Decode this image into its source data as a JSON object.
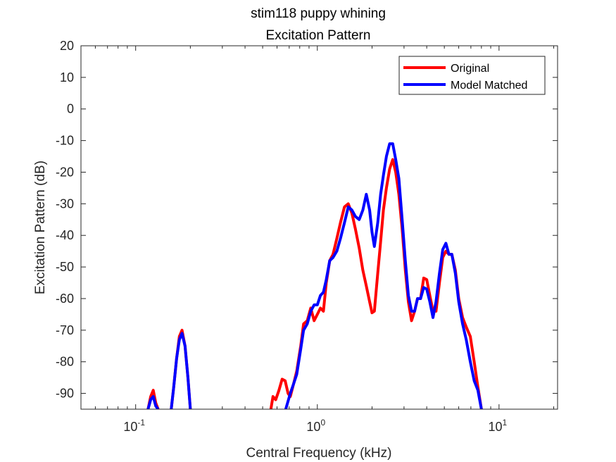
{
  "chart_data": {
    "type": "line",
    "title": "stim118 puppy whining",
    "subtitle": "Excitation Pattern",
    "xlabel": "Central Frequency (kHz)",
    "ylabel": "Excitation Pattern (dB)",
    "xscale": "log",
    "xlim": [
      0.05,
      21
    ],
    "ylim": [
      -95,
      20
    ],
    "yticks": [
      20,
      10,
      0,
      -10,
      -20,
      -30,
      -40,
      -50,
      -60,
      -70,
      -80,
      -90
    ],
    "xticks": [
      {
        "value": 0.1,
        "base": "10",
        "exp": "-1"
      },
      {
        "value": 1,
        "base": "10",
        "exp": "0"
      },
      {
        "value": 10,
        "base": "10",
        "exp": "1"
      }
    ],
    "grid": false,
    "legend_position": "top-right",
    "series": [
      {
        "name": "Original",
        "color": "#ff0000",
        "segments": [
          [
            [
              0.117,
              -95
            ],
            [
              0.121,
              -91
            ],
            [
              0.125,
              -89
            ],
            [
              0.129,
              -93
            ],
            [
              0.133,
              -95
            ]
          ],
          [
            [
              0.157,
              -95
            ],
            [
              0.162,
              -88
            ],
            [
              0.168,
              -79
            ],
            [
              0.174,
              -72
            ],
            [
              0.18,
              -70
            ],
            [
              0.187,
              -75
            ],
            [
              0.194,
              -85
            ],
            [
              0.2,
              -95
            ]
          ],
          [
            [
              0.555,
              -95
            ],
            [
              0.57,
              -91
            ],
            [
              0.59,
              -92
            ],
            [
              0.615,
              -89
            ],
            [
              0.64,
              -85.5
            ],
            [
              0.665,
              -86
            ],
            [
              0.69,
              -90
            ],
            [
              0.71,
              -91
            ],
            [
              0.74,
              -87
            ],
            [
              0.77,
              -83
            ],
            [
              0.81,
              -75
            ],
            [
              0.84,
              -68
            ],
            [
              0.88,
              -67
            ],
            [
              0.92,
              -63
            ],
            [
              0.96,
              -67
            ],
            [
              1.0,
              -65
            ],
            [
              1.04,
              -63
            ],
            [
              1.08,
              -64
            ],
            [
              1.12,
              -55
            ],
            [
              1.17,
              -48
            ],
            [
              1.22,
              -46
            ],
            [
              1.28,
              -41
            ],
            [
              1.34,
              -36
            ],
            [
              1.41,
              -31
            ],
            [
              1.48,
              -30
            ],
            [
              1.55,
              -33
            ],
            [
              1.62,
              -38
            ],
            [
              1.7,
              -44
            ],
            [
              1.78,
              -51
            ],
            [
              1.86,
              -56
            ],
            [
              1.94,
              -61
            ],
            [
              2.0,
              -64.5
            ],
            [
              2.06,
              -64
            ],
            [
              2.15,
              -52
            ],
            [
              2.23,
              -42
            ],
            [
              2.31,
              -32
            ],
            [
              2.4,
              -25
            ],
            [
              2.5,
              -19
            ],
            [
              2.6,
              -16
            ],
            [
              2.7,
              -20
            ],
            [
              2.81,
              -27
            ],
            [
              2.93,
              -38
            ],
            [
              3.05,
              -51
            ],
            [
              3.17,
              -61
            ],
            [
              3.3,
              -67
            ],
            [
              3.43,
              -64
            ],
            [
              3.56,
              -60
            ],
            [
              3.7,
              -60
            ],
            [
              3.85,
              -53.5
            ],
            [
              4.0,
              -54
            ],
            [
              4.16,
              -59
            ],
            [
              4.33,
              -64
            ],
            [
              4.5,
              -64
            ],
            [
              4.7,
              -55
            ],
            [
              4.9,
              -47
            ],
            [
              5.1,
              -45
            ],
            [
              5.3,
              -46
            ],
            [
              5.5,
              -46
            ],
            [
              5.75,
              -51
            ],
            [
              6.0,
              -60
            ],
            [
              6.3,
              -66
            ],
            [
              6.6,
              -69
            ],
            [
              6.95,
              -72
            ],
            [
              7.3,
              -80
            ],
            [
              7.65,
              -88
            ],
            [
              8.0,
              -95
            ]
          ]
        ]
      },
      {
        "name": "Model Matched",
        "color": "#0000ff",
        "segments": [
          [
            [
              0.117,
              -95
            ],
            [
              0.121,
              -92
            ],
            [
              0.125,
              -91
            ],
            [
              0.129,
              -94
            ],
            [
              0.133,
              -95
            ]
          ],
          [
            [
              0.157,
              -95
            ],
            [
              0.162,
              -88
            ],
            [
              0.168,
              -79
            ],
            [
              0.174,
              -73
            ],
            [
              0.18,
              -71
            ],
            [
              0.187,
              -75
            ],
            [
              0.194,
              -85
            ],
            [
              0.2,
              -95
            ]
          ],
          [
            [
              0.67,
              -95
            ],
            [
              0.71,
              -90
            ],
            [
              0.74,
              -87
            ],
            [
              0.77,
              -84
            ],
            [
              0.81,
              -76
            ],
            [
              0.84,
              -70
            ],
            [
              0.88,
              -68
            ],
            [
              0.92,
              -64
            ],
            [
              0.96,
              -62
            ],
            [
              1.0,
              -62
            ],
            [
              1.04,
              -59
            ],
            [
              1.08,
              -58
            ],
            [
              1.12,
              -54
            ],
            [
              1.17,
              -48
            ],
            [
              1.22,
              -47
            ],
            [
              1.28,
              -45
            ],
            [
              1.34,
              -41
            ],
            [
              1.41,
              -36
            ],
            [
              1.48,
              -31
            ],
            [
              1.55,
              -32
            ],
            [
              1.62,
              -34
            ],
            [
              1.7,
              -35
            ],
            [
              1.78,
              -32
            ],
            [
              1.86,
              -27
            ],
            [
              1.94,
              -32
            ],
            [
              2.0,
              -39
            ],
            [
              2.06,
              -43.5
            ],
            [
              2.15,
              -36
            ],
            [
              2.23,
              -27
            ],
            [
              2.31,
              -21
            ],
            [
              2.4,
              -15
            ],
            [
              2.5,
              -11
            ],
            [
              2.6,
              -11
            ],
            [
              2.7,
              -16
            ],
            [
              2.81,
              -22
            ],
            [
              2.93,
              -35
            ],
            [
              3.05,
              -48
            ],
            [
              3.17,
              -59
            ],
            [
              3.3,
              -64
            ],
            [
              3.43,
              -64
            ],
            [
              3.56,
              -60
            ],
            [
              3.7,
              -60
            ],
            [
              3.85,
              -56.5
            ],
            [
              4.0,
              -57
            ],
            [
              4.16,
              -61
            ],
            [
              4.33,
              -66
            ],
            [
              4.5,
              -61
            ],
            [
              4.7,
              -52
            ],
            [
              4.9,
              -44.5
            ],
            [
              5.1,
              -42.5
            ],
            [
              5.3,
              -46
            ],
            [
              5.5,
              -46
            ],
            [
              5.75,
              -52
            ],
            [
              6.0,
              -61
            ],
            [
              6.3,
              -68
            ],
            [
              6.6,
              -73
            ],
            [
              6.95,
              -80
            ],
            [
              7.3,
              -86
            ],
            [
              7.65,
              -89
            ],
            [
              8.0,
              -95
            ]
          ]
        ]
      }
    ]
  }
}
